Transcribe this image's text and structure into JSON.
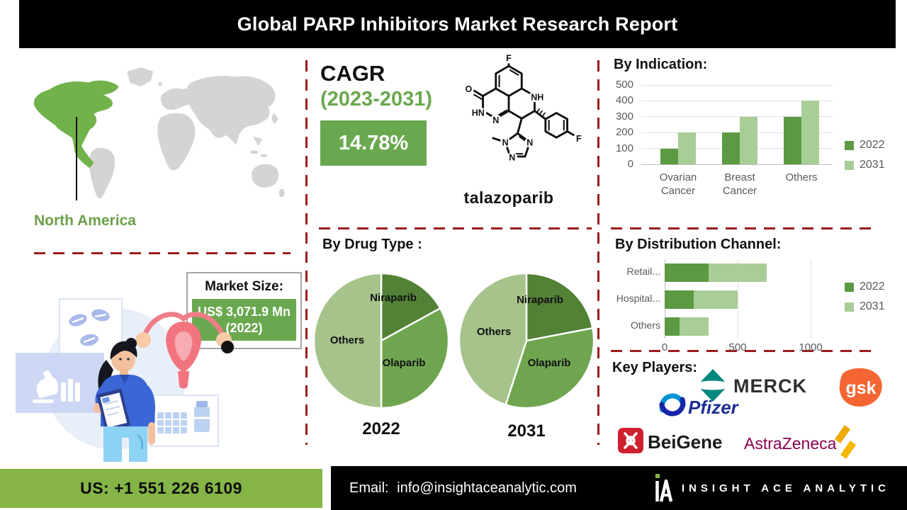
{
  "header": {
    "title": "Global PARP Inhibitors Market Research Report"
  },
  "map": {
    "region_label": "North America"
  },
  "market_size": {
    "label": "Market Size:",
    "value": "US$ 3,071.9 Mn (2022)"
  },
  "cagr": {
    "label": "CAGR",
    "period": "(2023-2031)",
    "value": "14.78%"
  },
  "molecule": {
    "name": "talazoparib",
    "atoms": {
      "f_top": "F",
      "o": "O",
      "hn": "HN",
      "n_left": "N",
      "nh": "NH",
      "n_tz_left": "N",
      "n_tz_right": "N",
      "n_tz_bottom": "N",
      "f_right": "F"
    }
  },
  "chart_data": [
    {
      "id": "by_indication",
      "type": "bar",
      "title": "By Indication:",
      "categories": [
        "Ovarian Cancer",
        "Breast Cancer",
        "Others"
      ],
      "series": [
        {
          "name": "2022",
          "values": [
            100,
            200,
            300
          ]
        },
        {
          "name": "2031",
          "values": [
            200,
            300,
            400
          ]
        }
      ],
      "ylim": [
        0,
        500
      ],
      "ytick_step": 100,
      "grid": true,
      "legend_position": "right"
    },
    {
      "id": "by_drug_type",
      "type": "pie",
      "title": "By Drug Type :",
      "unit": "percent_estimated",
      "pies": [
        {
          "label": "2022",
          "slices": [
            {
              "name": "Niraparib",
              "value": 17
            },
            {
              "name": "Olaparib",
              "value": 33
            },
            {
              "name": "Others",
              "value": 50
            }
          ]
        },
        {
          "label": "2031",
          "slices": [
            {
              "name": "Niraparib",
              "value": 22
            },
            {
              "name": "Olaparib",
              "value": 33
            },
            {
              "name": "Others",
              "value": 45
            }
          ]
        }
      ]
    },
    {
      "id": "by_distribution_channel",
      "type": "bar",
      "subtype": "horizontal_stacked",
      "title": "By Distribution Channel:",
      "categories": [
        "Retail...",
        "Hospital...",
        "Others"
      ],
      "series": [
        {
          "name": "2022",
          "values": [
            300,
            200,
            100
          ]
        },
        {
          "name": "2031",
          "values": [
            400,
            300,
            200
          ]
        }
      ],
      "xticks": [
        0,
        500,
        1000
      ],
      "xlim": [
        0,
        1150
      ],
      "legend_position": "right"
    }
  ],
  "key_players": {
    "label": "Key Players:",
    "companies": [
      "Pfizer",
      "MERCK",
      "gsk",
      "BeiGene",
      "AstraZeneca"
    ]
  },
  "footer": {
    "phone": "US: +1 551 226 6109",
    "email_label": "Email:",
    "email": "info@insightaceanalytic.com",
    "brand": "INSIGHT ACE ANALYTIC"
  },
  "colors": {
    "accent_green": "#6aa84f",
    "na_green": "#72b24a",
    "map_gray": "#d4d4d4",
    "pie_dark": "#538135",
    "pie_mid": "#70a550",
    "pie_light": "#a5c38a",
    "bar_2022": "#5b9a43",
    "bar_2031": "#a9cd96",
    "dashed_red": "#9b1c1c",
    "footer_green": "#84b546"
  }
}
